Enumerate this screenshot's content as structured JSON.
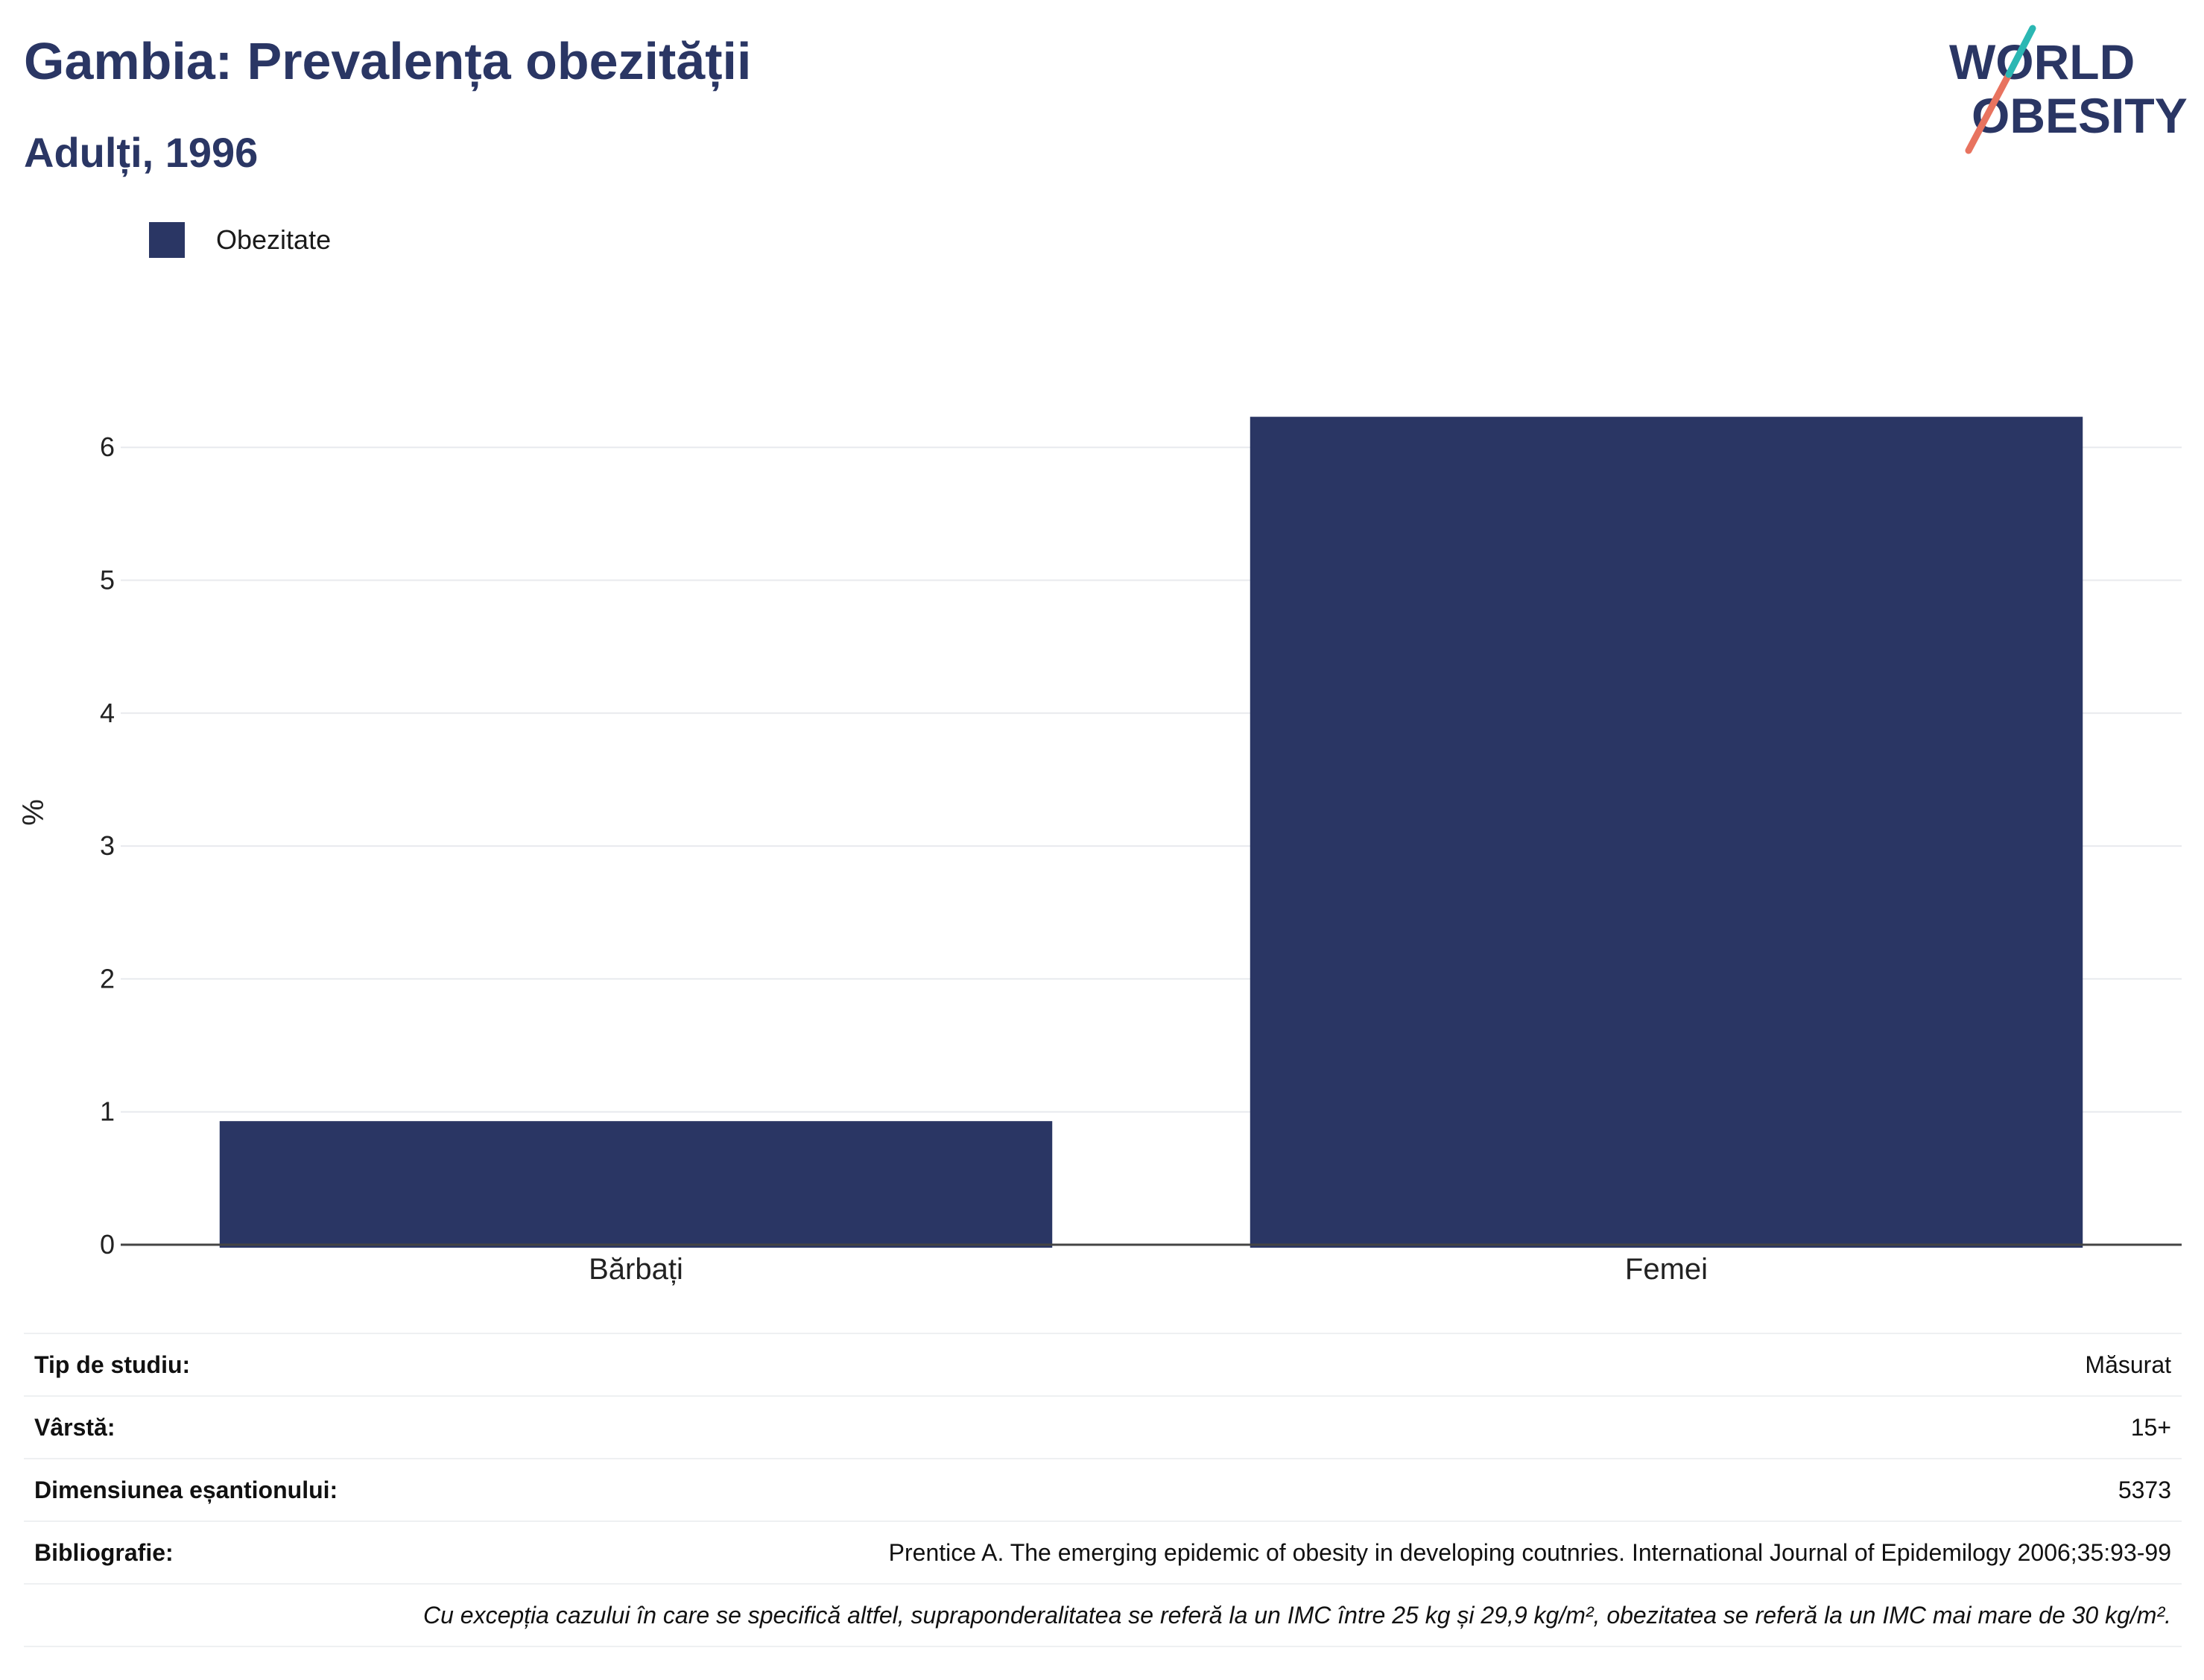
{
  "header": {
    "title": "Gambia: Prevalența obezității",
    "subtitle": "Adulți, 1996"
  },
  "logo": {
    "line1": "WORLD",
    "line2": "OBESITY"
  },
  "legend": {
    "label": "Obezitate",
    "color": "#2a3664"
  },
  "chart_data": {
    "type": "bar",
    "categories": [
      "Bărbați",
      "Femei"
    ],
    "series": [
      {
        "name": "Obezitate",
        "values": [
          0.93,
          6.23
        ]
      }
    ],
    "title": "Gambia: Prevalența obezității",
    "subtitle": "Adulți, 1996",
    "xlabel": "",
    "ylabel": "%",
    "ylim": [
      0,
      6.5
    ],
    "yticks": [
      0,
      1,
      2,
      3,
      4,
      5,
      6
    ],
    "grid": true,
    "legend_position": "top-left",
    "bar_color": "#2a3664"
  },
  "info": {
    "study_type": {
      "label": "Tip de studiu:",
      "value": "Măsurat"
    },
    "age": {
      "label": "Vârstă:",
      "value": "15+"
    },
    "sample_size": {
      "label": "Dimensiunea eșantionului:",
      "value": "5373"
    },
    "bibliography": {
      "label": "Bibliografie:",
      "value": "Prentice A. The emerging epidemic of obesity in developing coutnries. International Journal of Epidemilogy 2006;35:93-99"
    },
    "note": "Cu excepția cazului în care se specifică altfel, supraponderalitatea se referă la un IMC între 25 kg și 29,9 kg/m², obezitatea se referă la un IMC mai mare de 30 kg/m²."
  }
}
